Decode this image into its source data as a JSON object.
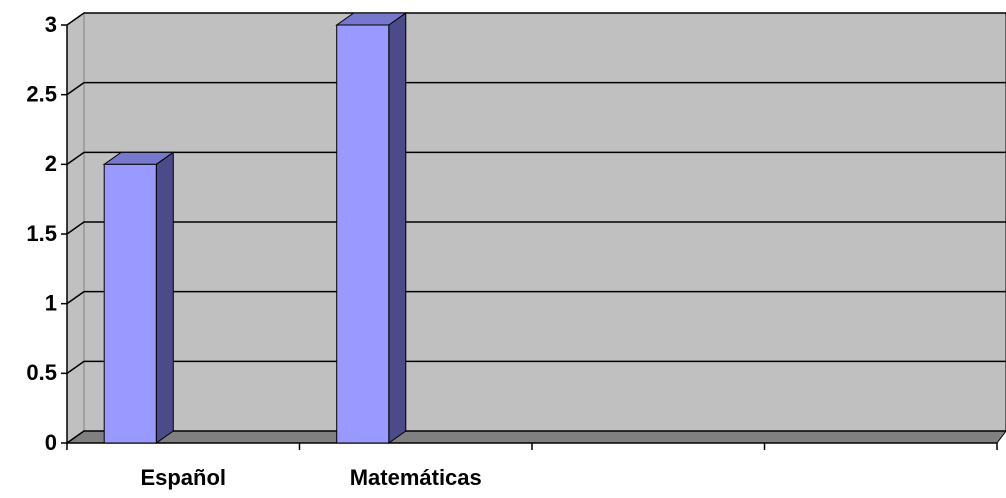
{
  "chart_data": {
    "type": "bar",
    "categories": [
      "Español",
      "Matemáticas",
      null,
      null
    ],
    "values": [
      2,
      3,
      null,
      null
    ],
    "color": "#9999ff",
    "ylim": [
      0,
      3
    ],
    "yticks": [
      0,
      0.5,
      1,
      1.5,
      2,
      2.5,
      3
    ],
    "grid": true
  }
}
